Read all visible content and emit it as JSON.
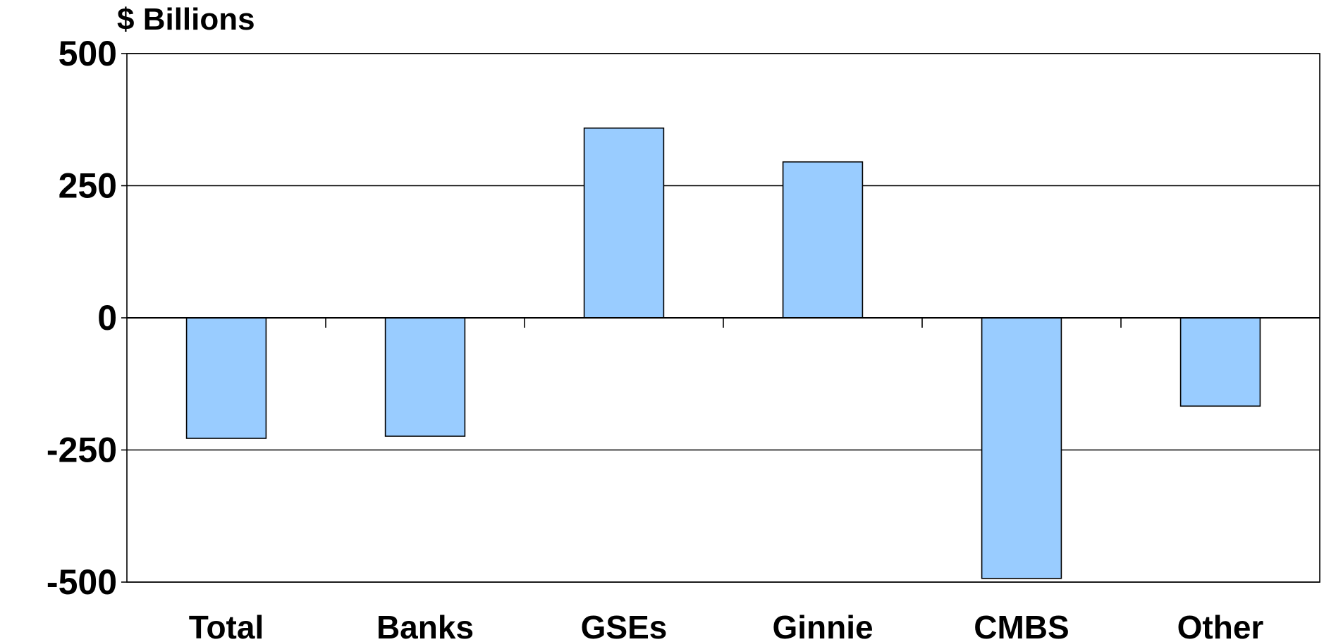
{
  "chart_data": {
    "type": "bar",
    "ylabel": "$ Billions",
    "xlabel": "",
    "categories": [
      "Total",
      "Banks",
      "GSEs",
      "Ginnie",
      "CMBS",
      "Other"
    ],
    "values": [
      -228,
      -224,
      359,
      295,
      -493,
      -167
    ],
    "ylim": [
      -500,
      500
    ],
    "yticks": [
      500,
      250,
      0,
      -250,
      -500
    ],
    "ytick_labels": [
      "500",
      "250",
      "0",
      "-250",
      "-500"
    ],
    "grid": true,
    "bar_color": "#99ccff",
    "bar_edge_color": "#000000"
  }
}
